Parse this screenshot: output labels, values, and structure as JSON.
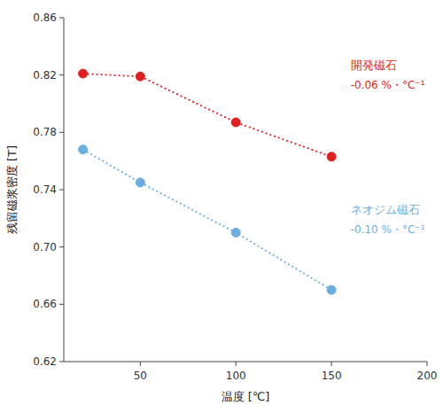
{
  "chart_data": {
    "type": "line",
    "xlabel": "温度 [℃]",
    "ylabel": "残留磁浆密度 [T]",
    "xlim": [
      10,
      200
    ],
    "ylim": [
      0.62,
      0.86
    ],
    "xticks": [
      50,
      100,
      150,
      200
    ],
    "yticks": [
      0.62,
      0.66,
      {
        "value": 0.7,
        "label": "0.70"
      },
      0.74,
      0.78,
      0.82,
      0.86
    ],
    "grid": false,
    "series": [
      {
        "x": [
          20,
          50,
          100,
          150
        ],
        "values": [
          0.821,
          0.819,
          0.787,
          0.763
        ],
        "color": "#e02020",
        "marker": "circle",
        "line_style": "dotted"
      },
      {
        "x": [
          20,
          50,
          100,
          150
        ],
        "values": [
          0.768,
          0.745,
          0.71,
          0.67
        ],
        "color": "#6aaee0",
        "marker": "circle",
        "line_style": "dotted"
      }
    ],
    "annotations": [
      {
        "text": "開発磁石",
        "x": 160,
        "y": 0.827,
        "color": "#e02020"
      },
      {
        "text": "-0.06 %・°C⁻¹",
        "x": 160,
        "y": 0.813,
        "color": "#e02020"
      },
      {
        "text": "ネオジム磁石",
        "x": 160,
        "y": 0.726,
        "color": "#6aaee0"
      },
      {
        "text": "-0.10 %・°C⁻¹",
        "x": 160,
        "y": 0.712,
        "color": "#6aaee0"
      }
    ]
  }
}
